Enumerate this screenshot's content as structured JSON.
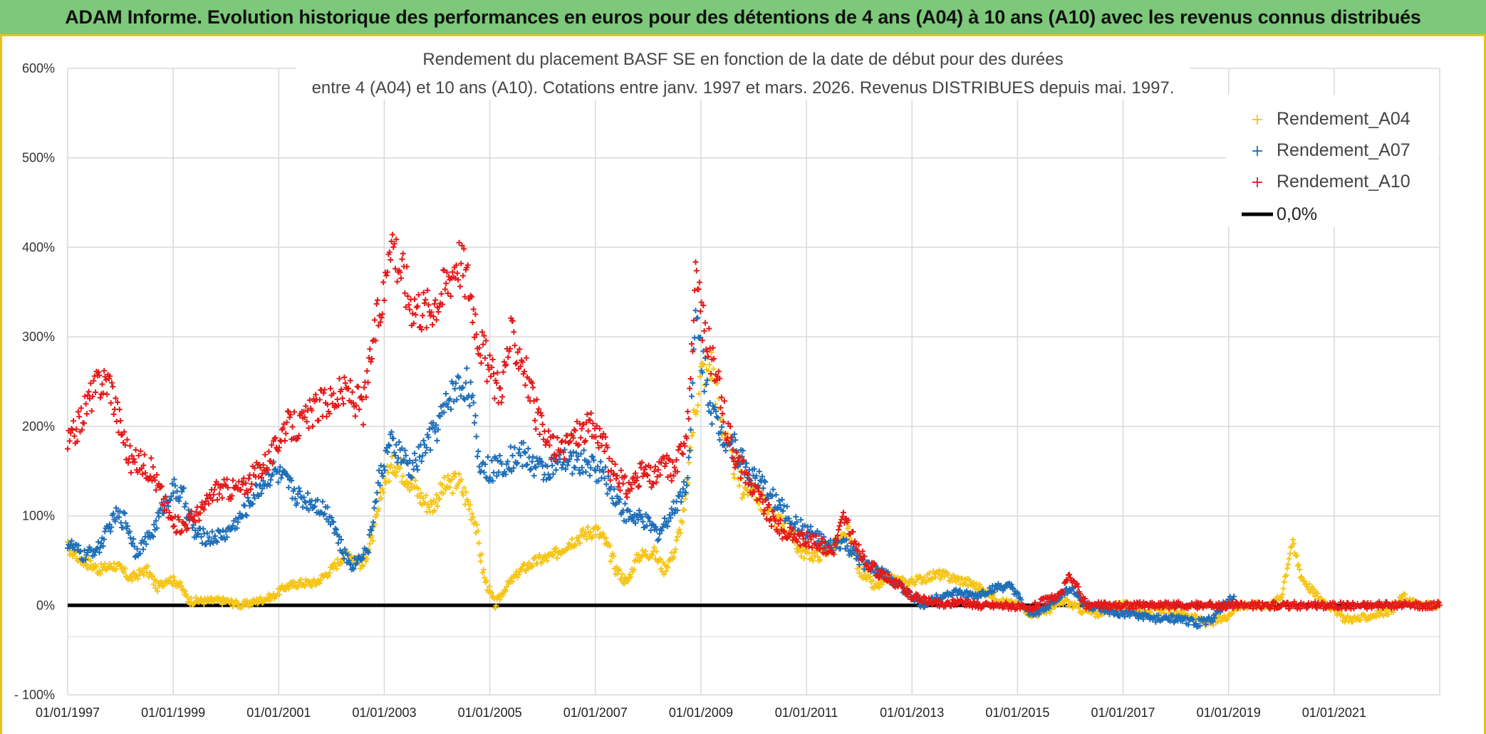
{
  "banner": {
    "title": "ADAM Informe. Evolution historique des performances en euros pour des détentions de 4 ans (A04) à 10 ans (A10) avec les revenus connus distribués"
  },
  "chart_data": {
    "type": "scatter",
    "title_line1": "Rendement du placement BASF SE en fonction de la date de début pour des durées",
    "title_line2": "entre 4 (A04) et 10 ans (A10). Cotations entre janv. 1997 et mars. 2026. Revenus DISTRIBUES depuis mai. 1997.",
    "xlabel": "",
    "ylabel": "",
    "x_range": [
      1997.0,
      2023.0
    ],
    "ylim": [
      -100,
      600
    ],
    "grid": true,
    "legend_position": "top-right",
    "y_ticks": [
      {
        "value": 600,
        "label": "600%"
      },
      {
        "value": 500,
        "label": "500%"
      },
      {
        "value": 400,
        "label": "400%"
      },
      {
        "value": 300,
        "label": "300%"
      },
      {
        "value": 200,
        "label": "200%"
      },
      {
        "value": 100,
        "label": "100%"
      },
      {
        "value": 0,
        "label": "0%"
      },
      {
        "value": -100,
        "label": "- 100%"
      }
    ],
    "x_ticks": [
      {
        "value": 1997,
        "label": "01/01/1997"
      },
      {
        "value": 1999,
        "label": "01/01/1999"
      },
      {
        "value": 2001,
        "label": "01/01/2001"
      },
      {
        "value": 2003,
        "label": "01/01/2003"
      },
      {
        "value": 2005,
        "label": "01/01/2005"
      },
      {
        "value": 2007,
        "label": "01/01/2007"
      },
      {
        "value": 2009,
        "label": "01/01/2009"
      },
      {
        "value": 2011,
        "label": "01/01/2011"
      },
      {
        "value": 2013,
        "label": "01/01/2013"
      },
      {
        "value": 2015,
        "label": "01/01/2015"
      },
      {
        "value": 2017,
        "label": "01/01/2017"
      },
      {
        "value": 2019,
        "label": "01/01/2019"
      },
      {
        "value": 2021,
        "label": "01/01/2021"
      }
    ],
    "series": [
      {
        "name": "Rendement_A04",
        "color": "#f5c518",
        "marker": "+",
        "points": [
          [
            1997.0,
            65
          ],
          [
            1997.3,
            50
          ],
          [
            1997.6,
            40
          ],
          [
            1997.9,
            45
          ],
          [
            1998.2,
            30
          ],
          [
            1998.5,
            40
          ],
          [
            1998.7,
            20
          ],
          [
            1998.9,
            30
          ],
          [
            1999.1,
            25
          ],
          [
            1999.3,
            5
          ],
          [
            1999.6,
            5
          ],
          [
            2000.0,
            5
          ],
          [
            2000.3,
            0
          ],
          [
            2000.6,
            5
          ],
          [
            2000.9,
            10
          ],
          [
            2001.1,
            20
          ],
          [
            2001.4,
            25
          ],
          [
            2001.7,
            25
          ],
          [
            2002.0,
            40
          ],
          [
            2002.3,
            60
          ],
          [
            2002.6,
            45
          ],
          [
            2002.8,
            80
          ],
          [
            2003.0,
            140
          ],
          [
            2003.2,
            160
          ],
          [
            2003.5,
            140
          ],
          [
            2003.7,
            120
          ],
          [
            2003.9,
            110
          ],
          [
            2004.1,
            130
          ],
          [
            2004.4,
            140
          ],
          [
            2004.7,
            100
          ],
          [
            2004.9,
            30
          ],
          [
            2005.1,
            0
          ],
          [
            2005.3,
            20
          ],
          [
            2005.6,
            40
          ],
          [
            2005.9,
            50
          ],
          [
            2006.2,
            55
          ],
          [
            2006.5,
            70
          ],
          [
            2006.8,
            80
          ],
          [
            2007.0,
            85
          ],
          [
            2007.2,
            70
          ],
          [
            2007.4,
            40
          ],
          [
            2007.6,
            25
          ],
          [
            2007.8,
            55
          ],
          [
            2008.1,
            60
          ],
          [
            2008.3,
            40
          ],
          [
            2008.5,
            60
          ],
          [
            2008.7,
            110
          ],
          [
            2008.85,
            200
          ],
          [
            2009.0,
            260
          ],
          [
            2009.2,
            270
          ],
          [
            2009.4,
            200
          ],
          [
            2009.6,
            160
          ],
          [
            2009.8,
            130
          ],
          [
            2010.0,
            130
          ],
          [
            2010.3,
            100
          ],
          [
            2010.6,
            90
          ],
          [
            2010.9,
            60
          ],
          [
            2011.2,
            55
          ],
          [
            2011.5,
            65
          ],
          [
            2011.8,
            80
          ],
          [
            2012.0,
            40
          ],
          [
            2012.3,
            20
          ],
          [
            2012.6,
            30
          ],
          [
            2012.9,
            25
          ],
          [
            2013.2,
            30
          ],
          [
            2013.5,
            35
          ],
          [
            2013.8,
            30
          ],
          [
            2014.1,
            25
          ],
          [
            2014.4,
            15
          ],
          [
            2014.7,
            5
          ],
          [
            2015.0,
            0
          ],
          [
            2015.3,
            -10
          ],
          [
            2015.6,
            -5
          ],
          [
            2015.9,
            5
          ],
          [
            2016.2,
            -5
          ],
          [
            2016.5,
            -10
          ],
          [
            2016.8,
            0
          ],
          [
            2017.1,
            0
          ],
          [
            2017.4,
            -5
          ],
          [
            2017.8,
            -5
          ],
          [
            2018.2,
            -10
          ],
          [
            2018.6,
            -20
          ],
          [
            2018.9,
            -15
          ],
          [
            2019.2,
            0
          ],
          [
            2019.5,
            0
          ],
          [
            2019.8,
            0
          ],
          [
            2020.0,
            10
          ],
          [
            2020.2,
            70
          ],
          [
            2020.4,
            30
          ],
          [
            2020.6,
            15
          ],
          [
            2020.9,
            0
          ],
          [
            2021.2,
            -15
          ],
          [
            2021.5,
            -15
          ],
          [
            2021.8,
            -10
          ],
          [
            2022.1,
            -5
          ],
          [
            2022.3,
            10
          ],
          [
            2022.6,
            0
          ],
          [
            2023.0,
            0
          ]
        ]
      },
      {
        "name": "Rendement_A07",
        "color": "#1f6fb8",
        "marker": "+",
        "points": [
          [
            1997.0,
            70
          ],
          [
            1997.3,
            55
          ],
          [
            1997.6,
            65
          ],
          [
            1997.9,
            100
          ],
          [
            1998.1,
            95
          ],
          [
            1998.3,
            60
          ],
          [
            1998.6,
            80
          ],
          [
            1998.8,
            110
          ],
          [
            1999.0,
            130
          ],
          [
            1999.2,
            120
          ],
          [
            1999.4,
            80
          ],
          [
            1999.7,
            75
          ],
          [
            2000.0,
            80
          ],
          [
            2000.3,
            100
          ],
          [
            2000.6,
            130
          ],
          [
            2000.9,
            150
          ],
          [
            2001.1,
            140
          ],
          [
            2001.4,
            120
          ],
          [
            2001.7,
            115
          ],
          [
            2002.0,
            100
          ],
          [
            2002.2,
            60
          ],
          [
            2002.4,
            45
          ],
          [
            2002.7,
            65
          ],
          [
            2002.9,
            140
          ],
          [
            2003.1,
            180
          ],
          [
            2003.3,
            170
          ],
          [
            2003.5,
            150
          ],
          [
            2003.8,
            180
          ],
          [
            2004.0,
            200
          ],
          [
            2004.3,
            240
          ],
          [
            2004.6,
            250
          ],
          [
            2004.8,
            160
          ],
          [
            2005.0,
            150
          ],
          [
            2005.3,
            160
          ],
          [
            2005.6,
            170
          ],
          [
            2006.0,
            150
          ],
          [
            2006.4,
            160
          ],
          [
            2006.8,
            160
          ],
          [
            2007.1,
            150
          ],
          [
            2007.3,
            130
          ],
          [
            2007.6,
            100
          ],
          [
            2007.9,
            95
          ],
          [
            2008.2,
            80
          ],
          [
            2008.5,
            110
          ],
          [
            2008.75,
            140
          ],
          [
            2008.9,
            320
          ],
          [
            2009.1,
            250
          ],
          [
            2009.3,
            200
          ],
          [
            2009.6,
            180
          ],
          [
            2009.9,
            150
          ],
          [
            2010.2,
            130
          ],
          [
            2010.5,
            110
          ],
          [
            2010.8,
            90
          ],
          [
            2011.1,
            80
          ],
          [
            2011.4,
            65
          ],
          [
            2011.7,
            70
          ],
          [
            2012.0,
            50
          ],
          [
            2012.3,
            40
          ],
          [
            2012.6,
            30
          ],
          [
            2012.9,
            15
          ],
          [
            2013.2,
            0
          ],
          [
            2013.5,
            10
          ],
          [
            2013.8,
            15
          ],
          [
            2014.2,
            10
          ],
          [
            2014.6,
            20
          ],
          [
            2014.9,
            20
          ],
          [
            2015.2,
            -10
          ],
          [
            2015.5,
            -5
          ],
          [
            2015.8,
            10
          ],
          [
            2016.0,
            20
          ],
          [
            2016.3,
            0
          ],
          [
            2016.6,
            -5
          ],
          [
            2016.9,
            -10
          ],
          [
            2017.2,
            -10
          ],
          [
            2017.6,
            -15
          ],
          [
            2018.0,
            -15
          ],
          [
            2018.4,
            -20
          ],
          [
            2018.7,
            -15
          ],
          [
            2018.9,
            0
          ],
          [
            2019.1,
            10
          ]
        ]
      },
      {
        "name": "Rendement_A10",
        "color": "#e41a1a",
        "marker": "+",
        "points": [
          [
            1997.0,
            180
          ],
          [
            1997.2,
            200
          ],
          [
            1997.4,
            230
          ],
          [
            1997.6,
            250
          ],
          [
            1997.8,
            250
          ],
          [
            1998.0,
            200
          ],
          [
            1998.2,
            160
          ],
          [
            1998.4,
            160
          ],
          [
            1998.6,
            150
          ],
          [
            1998.8,
            120
          ],
          [
            1999.0,
            90
          ],
          [
            1999.2,
            90
          ],
          [
            1999.4,
            100
          ],
          [
            1999.6,
            110
          ],
          [
            1999.8,
            130
          ],
          [
            2000.0,
            130
          ],
          [
            2000.3,
            130
          ],
          [
            2000.6,
            150
          ],
          [
            2000.9,
            170
          ],
          [
            2001.1,
            200
          ],
          [
            2001.4,
            200
          ],
          [
            2001.7,
            220
          ],
          [
            2002.0,
            230
          ],
          [
            2002.3,
            240
          ],
          [
            2002.6,
            220
          ],
          [
            2002.8,
            300
          ],
          [
            2003.0,
            350
          ],
          [
            2003.1,
            420
          ],
          [
            2003.3,
            380
          ],
          [
            2003.5,
            340
          ],
          [
            2003.8,
            330
          ],
          [
            2004.1,
            350
          ],
          [
            2004.4,
            390
          ],
          [
            2004.6,
            360
          ],
          [
            2004.8,
            300
          ],
          [
            2005.0,
            260
          ],
          [
            2005.2,
            240
          ],
          [
            2005.4,
            300
          ],
          [
            2005.6,
            280
          ],
          [
            2005.8,
            230
          ],
          [
            2006.0,
            190
          ],
          [
            2006.3,
            170
          ],
          [
            2006.6,
            190
          ],
          [
            2006.9,
            200
          ],
          [
            2007.1,
            190
          ],
          [
            2007.3,
            150
          ],
          [
            2007.6,
            130
          ],
          [
            2007.9,
            150
          ],
          [
            2008.1,
            140
          ],
          [
            2008.3,
            160
          ],
          [
            2008.5,
            150
          ],
          [
            2008.75,
            200
          ],
          [
            2008.9,
            360
          ],
          [
            2009.1,
            300
          ],
          [
            2009.3,
            250
          ],
          [
            2009.5,
            200
          ],
          [
            2009.7,
            160
          ],
          [
            2009.9,
            140
          ],
          [
            2010.1,
            120
          ],
          [
            2010.3,
            100
          ],
          [
            2010.6,
            80
          ],
          [
            2010.9,
            75
          ],
          [
            2011.2,
            70
          ],
          [
            2011.5,
            60
          ],
          [
            2011.7,
            100
          ],
          [
            2011.9,
            70
          ],
          [
            2012.1,
            50
          ],
          [
            2012.4,
            35
          ],
          [
            2012.7,
            25
          ],
          [
            2013.0,
            10
          ],
          [
            2013.3,
            5
          ],
          [
            2013.6,
            0
          ],
          [
            2013.9,
            5
          ],
          [
            2014.2,
            0
          ],
          [
            2014.6,
            0
          ],
          [
            2014.9,
            0
          ],
          [
            2015.2,
            -5
          ],
          [
            2015.5,
            5
          ],
          [
            2015.8,
            10
          ],
          [
            2016.0,
            35
          ],
          [
            2016.3,
            0
          ],
          [
            2016.8,
            0
          ],
          [
            2017.3,
            0
          ],
          [
            2017.8,
            0
          ],
          [
            2018.3,
            0
          ],
          [
            2018.8,
            0
          ],
          [
            2019.3,
            0
          ],
          [
            2019.8,
            0
          ],
          [
            2020.3,
            0
          ],
          [
            2020.8,
            0
          ],
          [
            2021.3,
            0
          ],
          [
            2021.8,
            0
          ],
          [
            2022.3,
            0
          ],
          [
            2022.8,
            0
          ],
          [
            2023.0,
            0
          ]
        ]
      }
    ],
    "reference_line": {
      "name": "0,0%",
      "value": 0,
      "color": "#000000"
    },
    "legend": [
      {
        "label": "Rendement_A04",
        "color": "#f5c518",
        "kind": "marker"
      },
      {
        "label": "Rendement_A07",
        "color": "#1f6fb8",
        "kind": "marker"
      },
      {
        "label": "Rendement_A10",
        "color": "#e41a1a",
        "kind": "marker"
      },
      {
        "label": "0,0%",
        "color": "#000000",
        "kind": "line"
      }
    ]
  }
}
